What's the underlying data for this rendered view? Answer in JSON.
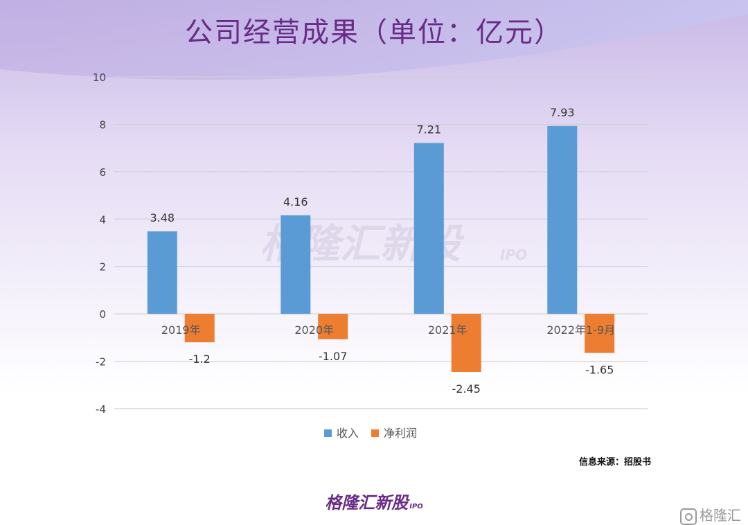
{
  "title": "公司经营成果（单位：亿元）",
  "watermark": {
    "text": "格隆汇新股",
    "sub": "IPO"
  },
  "source": "信息来源：招股书",
  "brand": {
    "text": "格隆汇新股",
    "sub": "IPO"
  },
  "corner_logo": {
    "text": "格隆汇",
    "icon": "gelonghui-logo-icon"
  },
  "colors": {
    "revenue": "#5b9bd5",
    "net_profit": "#ed7d31",
    "title": "#6a2b86"
  },
  "chart_data": {
    "type": "bar",
    "categories": [
      "2019年",
      "2020年",
      "2021年",
      "2022年1-9月"
    ],
    "series": [
      {
        "name": "收入",
        "values": [
          3.48,
          4.16,
          7.21,
          7.93
        ],
        "labels": [
          "3.48",
          "4.16",
          "7.21",
          "7.93"
        ]
      },
      {
        "name": "净利润",
        "values": [
          -1.2,
          -1.07,
          -2.45,
          -1.65
        ],
        "labels": [
          "-1.2",
          "-1.07",
          "-2.45",
          "-1.65"
        ]
      }
    ],
    "ylim": [
      -4,
      10
    ],
    "yticks": [
      "-4",
      "-2",
      "0",
      "2",
      "4",
      "6",
      "8",
      "10"
    ],
    "grid": true,
    "legend": "bottom"
  }
}
